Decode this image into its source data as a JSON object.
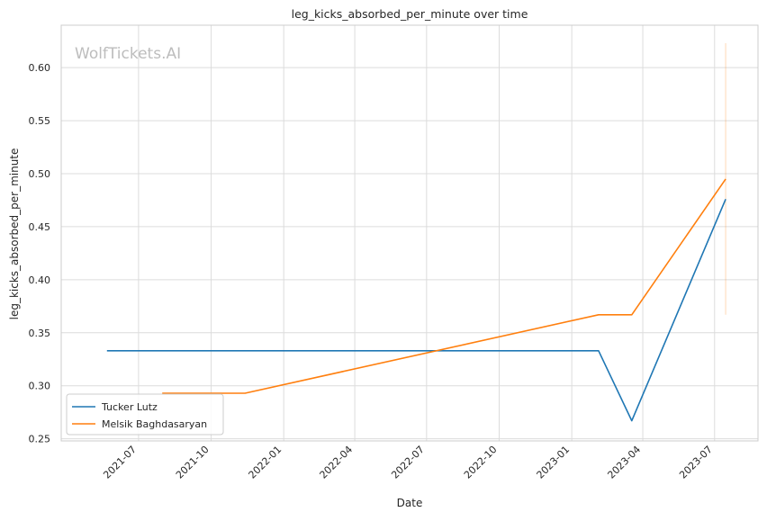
{
  "chart_data": {
    "type": "line",
    "title": "leg_kicks_absorbed_per_minute over time",
    "xlabel": "Date",
    "ylabel": "leg_kicks_absorbed_per_minute",
    "watermark": "WolfTickets.AI",
    "grid": true,
    "legend_position": "lower-left",
    "x_range": [
      "2021-03-25",
      "2023-08-25"
    ],
    "ylim": [
      0.248,
      0.64
    ],
    "x_ticks": [
      "2021-07-01",
      "2021-10-01",
      "2022-01-01",
      "2022-04-01",
      "2022-07-01",
      "2022-10-01",
      "2023-01-01",
      "2023-04-01",
      "2023-07-01"
    ],
    "x_tick_labels": [
      "2021-07",
      "2021-10",
      "2022-01",
      "2022-04",
      "2022-07",
      "2022-10",
      "2023-01",
      "2023-04",
      "2023-07"
    ],
    "y_ticks": [
      0.25,
      0.3,
      0.35,
      0.4,
      0.45,
      0.5,
      0.55,
      0.6
    ],
    "y_tick_labels": [
      "0.25",
      "0.30",
      "0.35",
      "0.40",
      "0.45",
      "0.50",
      "0.55",
      "0.60"
    ],
    "series": [
      {
        "name": "Tucker Lutz",
        "color": "#1f77b4",
        "x": [
          "2021-05-22",
          "2023-02-04",
          "2023-03-18",
          "2023-07-15"
        ],
        "y": [
          0.333,
          0.333,
          0.267,
          0.476
        ]
      },
      {
        "name": "Melsik Baghdasaryan",
        "color": "#ff7f0e",
        "x": [
          "2021-07-31",
          "2021-11-13",
          "2023-02-04",
          "2023-03-18",
          "2023-07-15"
        ],
        "y": [
          0.293,
          0.293,
          0.367,
          0.367,
          0.495
        ]
      }
    ],
    "error_band": {
      "color": "#ff7f0e",
      "x": "2023-07-15",
      "y_low": 0.367,
      "y_high": 0.623
    }
  }
}
